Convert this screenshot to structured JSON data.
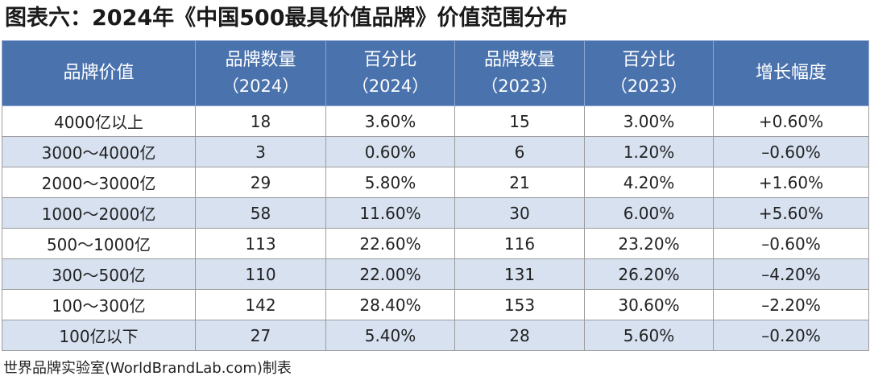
{
  "title": "图表六：2024年《中国500最具价值品牌》价值范围分布",
  "table": {
    "headers": [
      {
        "main": "品牌价值",
        "sub": ""
      },
      {
        "main": "品牌数量",
        "sub": "（2024）"
      },
      {
        "main": "百分比",
        "sub": "（2024）"
      },
      {
        "main": "品牌数量",
        "sub": "（2023）"
      },
      {
        "main": "百分比",
        "sub": "（2023）"
      },
      {
        "main": "增长幅度",
        "sub": ""
      }
    ],
    "rows": [
      [
        "4000亿以上",
        "18",
        "3.60%",
        "15",
        "3.00%",
        "+0.60%"
      ],
      [
        "3000～4000亿",
        "3",
        "0.60%",
        "6",
        "1.20%",
        "–0.60%"
      ],
      [
        "2000～3000亿",
        "29",
        "5.80%",
        "21",
        "4.20%",
        "+1.60%"
      ],
      [
        "1000～2000亿",
        "58",
        "11.60%",
        "30",
        "6.00%",
        "+5.60%"
      ],
      [
        "500～1000亿",
        "113",
        "22.60%",
        "116",
        "23.20%",
        "–0.60%"
      ],
      [
        "300～500亿",
        "110",
        "22.00%",
        "131",
        "26.20%",
        "–4.20%"
      ],
      [
        "100～300亿",
        "142",
        "28.40%",
        "153",
        "30.60%",
        "–2.20%"
      ],
      [
        "100亿以下",
        "27",
        "5.40%",
        "28",
        "5.60%",
        "–0.20%"
      ]
    ]
  },
  "footer": "世界品牌实验室(WorldBrandLab.com)制表",
  "colors": {
    "header_bg": "#4a72ad",
    "alt_row_bg": "#d7e1f0",
    "plain_row_bg": "#ffffff"
  }
}
